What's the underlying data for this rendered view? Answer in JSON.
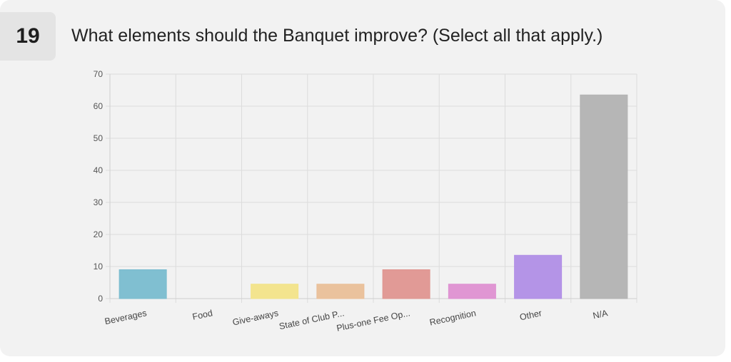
{
  "question": {
    "number": "19",
    "text": "What elements should the Banquet improve? (Select all that apply.)"
  },
  "chart_data": {
    "type": "bar",
    "categories": [
      "Beverages",
      "Food",
      "Give-aways",
      "State of Club P...",
      "Plus-one Fee Op...",
      "Recognition",
      "Other",
      "N/A"
    ],
    "values": [
      9,
      0,
      4.5,
      4.5,
      9,
      4.5,
      13.5,
      63.5
    ],
    "colors": [
      "#79bccf",
      "#9cb1dd",
      "#f2e388",
      "#e9bf98",
      "#df9590",
      "#de90d1",
      "#b08ee6",
      "#b2b2b2"
    ],
    "ylim": [
      0,
      70
    ],
    "yticks": [
      0,
      10,
      20,
      30,
      40,
      50,
      60,
      70
    ],
    "grid": true,
    "legend": "none"
  }
}
